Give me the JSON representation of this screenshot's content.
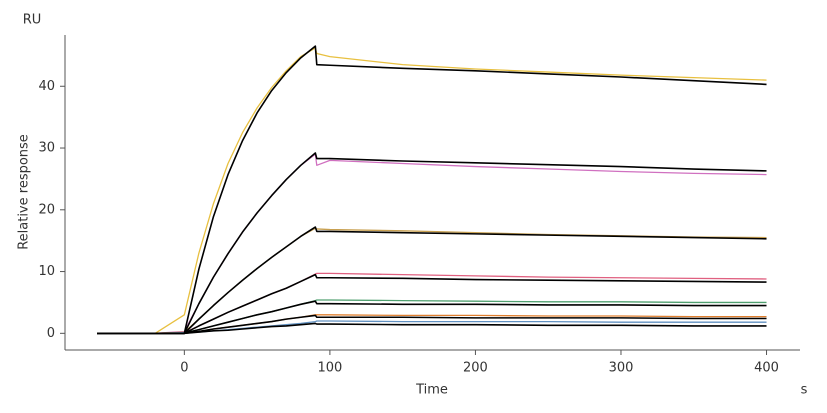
{
  "chart_data": {
    "type": "line",
    "y_unit_label": "RU",
    "ylabel": "Relative response",
    "xlabel": "Time",
    "x_unit_label": "s",
    "x": [
      -60,
      -20,
      0,
      10,
      20,
      30,
      40,
      50,
      60,
      70,
      80,
      90,
      91,
      100,
      150,
      200,
      250,
      300,
      350,
      400
    ],
    "xlim": [
      -82,
      423
    ],
    "xticks": [
      0,
      100,
      200,
      300,
      400
    ],
    "ylim": [
      -2.7,
      48.3
    ],
    "yticks": [
      0,
      10,
      20,
      30,
      40
    ],
    "grid": false,
    "series": [
      {
        "color": "#e8c040",
        "values": [
          0,
          0,
          3,
          13,
          21,
          27.5,
          32.5,
          36.5,
          39.8,
          42.5,
          44.8,
          46.2,
          45.3,
          44.8,
          43.5,
          42.8,
          42.3,
          41.8,
          41.4,
          41.0
        ]
      },
      {
        "color": "#d070c0",
        "values": [
          0,
          0,
          0.3,
          4.8,
          9.1,
          12.9,
          16.4,
          19.5,
          22.3,
          24.9,
          27.2,
          29.0,
          27.2,
          28.0,
          27.5,
          27.0,
          26.6,
          26.2,
          25.9,
          25.7
        ]
      },
      {
        "color": "#c8a050",
        "values": [
          0,
          0,
          0.2,
          2.3,
          4.5,
          6.6,
          8.6,
          10.5,
          12.3,
          14.0,
          15.7,
          17.0,
          16.9,
          16.8,
          16.6,
          16.3,
          16.0,
          15.8,
          15.6,
          15.5
        ]
      },
      {
        "color": "#e06080",
        "values": [
          0,
          0,
          0.1,
          1.2,
          2.3,
          3.4,
          4.4,
          5.4,
          6.4,
          7.3,
          8.4,
          9.6,
          9.7,
          9.7,
          9.5,
          9.3,
          9.1,
          9.0,
          8.9,
          8.8
        ]
      },
      {
        "color": "#50a070",
        "values": [
          0,
          0,
          0.1,
          0.6,
          1.2,
          1.8,
          2.4,
          3.0,
          3.5,
          4.1,
          4.7,
          5.3,
          5.4,
          5.4,
          5.3,
          5.2,
          5.1,
          5.1,
          5.0,
          5.0
        ]
      },
      {
        "color": "#e08030",
        "values": [
          0,
          0,
          0.1,
          0.3,
          0.7,
          1.0,
          1.3,
          1.6,
          1.9,
          2.3,
          2.6,
          3.0,
          3.0,
          3.0,
          2.9,
          2.9,
          2.8,
          2.8,
          2.7,
          2.7
        ]
      },
      {
        "color": "#6090c0",
        "values": [
          0,
          0,
          0.1,
          0.2,
          0.4,
          0.6,
          0.8,
          1.0,
          1.2,
          1.4,
          1.6,
          1.9,
          2.0,
          2.0,
          1.9,
          1.9,
          1.9,
          1.8,
          1.8,
          1.8
        ]
      },
      {
        "color": "#000000",
        "values": [
          0,
          0,
          0,
          10.4,
          18.9,
          25.7,
          31.2,
          35.7,
          39.3,
          42.2,
          44.6,
          46.5,
          43.5,
          43.4,
          42.9,
          42.5,
          42.0,
          41.5,
          40.9,
          40.3
        ]
      },
      {
        "color": "#000000",
        "values": [
          0,
          0,
          0,
          4.8,
          9.1,
          12.9,
          16.4,
          19.5,
          22.3,
          24.9,
          27.2,
          29.2,
          28.3,
          28.3,
          27.9,
          27.6,
          27.3,
          27.0,
          26.6,
          26.3
        ]
      },
      {
        "color": "#000000",
        "values": [
          0,
          0,
          0,
          2.3,
          4.5,
          6.6,
          8.6,
          10.5,
          12.3,
          14.0,
          15.7,
          17.2,
          16.5,
          16.5,
          16.3,
          16.1,
          15.9,
          15.7,
          15.5,
          15.3
        ]
      },
      {
        "color": "#000000",
        "values": [
          0,
          0,
          0,
          1.2,
          2.3,
          3.4,
          4.4,
          5.4,
          6.4,
          7.3,
          8.4,
          9.5,
          9.0,
          9.0,
          8.9,
          8.7,
          8.6,
          8.5,
          8.4,
          8.3
        ]
      },
      {
        "color": "#000000",
        "values": [
          0,
          0,
          0,
          0.6,
          1.2,
          1.8,
          2.4,
          3.0,
          3.5,
          4.1,
          4.7,
          5.2,
          4.8,
          4.8,
          4.7,
          4.7,
          4.6,
          4.6,
          4.5,
          4.5
        ]
      },
      {
        "color": "#000000",
        "values": [
          0,
          0,
          0,
          0.3,
          0.7,
          1.0,
          1.3,
          1.6,
          1.9,
          2.3,
          2.6,
          2.9,
          2.6,
          2.6,
          2.6,
          2.5,
          2.5,
          2.5,
          2.4,
          2.4
        ]
      },
      {
        "color": "#000000",
        "values": [
          0,
          0,
          0,
          0.2,
          0.4,
          0.5,
          0.7,
          0.9,
          1.1,
          1.2,
          1.4,
          1.6,
          1.5,
          1.5,
          1.4,
          1.4,
          1.3,
          1.3,
          1.2,
          1.2
        ]
      }
    ]
  }
}
